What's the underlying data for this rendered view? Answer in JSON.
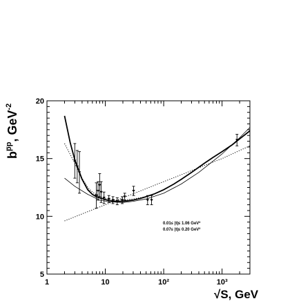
{
  "chart_data": {
    "type": "scatter",
    "xscale": "log",
    "xlim": [
      1,
      3000
    ],
    "ylim": [
      5,
      20
    ],
    "xlabel": "√S, GeV",
    "ylabel": "b^{p̅p}, GeV^{-2}",
    "xticks": [
      {
        "value": 1,
        "label": "1"
      },
      {
        "value": 10,
        "label": "10"
      },
      {
        "value": 100,
        "label": "10²"
      },
      {
        "value": 1000,
        "label": "10³"
      }
    ],
    "yticks": [
      {
        "value": 5,
        "label": "5"
      },
      {
        "value": 10,
        "label": "10"
      },
      {
        "value": 15,
        "label": "15"
      },
      {
        "value": 20,
        "label": "20"
      }
    ],
    "annotations": [
      "0.01≤ |t|≤ 1.06 GeV²",
      "0.07≤ |t|≤ 0.20 GeV²"
    ],
    "points": [
      {
        "x": 3.0,
        "y": 14.8,
        "yerr": 1.5
      },
      {
        "x": 3.3,
        "y": 14.3,
        "yerr": 1.4
      },
      {
        "x": 3.6,
        "y": 13.8,
        "yerr": 1.8
      },
      {
        "x": 7.0,
        "y": 11.8,
        "yerr": 1.1
      },
      {
        "x": 7.5,
        "y": 12.2,
        "yerr": 0.8
      },
      {
        "x": 8.0,
        "y": 12.7,
        "yerr": 1.0
      },
      {
        "x": 8.5,
        "y": 12.1,
        "yerr": 0.9
      },
      {
        "x": 9.5,
        "y": 11.6,
        "yerr": 0.5
      },
      {
        "x": 11.5,
        "y": 11.5,
        "yerr": 0.3
      },
      {
        "x": 13.5,
        "y": 11.4,
        "yerr": 0.3
      },
      {
        "x": 16.0,
        "y": 11.3,
        "yerr": 0.3
      },
      {
        "x": 19.5,
        "y": 11.4,
        "yerr": 0.3
      },
      {
        "x": 21.5,
        "y": 11.7,
        "yerr": 0.3
      },
      {
        "x": 30.5,
        "y": 12.2,
        "yerr": 0.4
      },
      {
        "x": 53.0,
        "y": 11.4,
        "yerr": 0.4
      },
      {
        "x": 62.0,
        "y": 11.4,
        "yerr": 0.4
      },
      {
        "x": 1800.0,
        "y": 16.6,
        "yerr": 0.5
      }
    ],
    "series": [
      {
        "style": "thick-solid",
        "x": [
          2.0,
          2.5,
          3,
          4,
          5,
          6,
          7,
          8,
          10,
          12,
          15,
          20,
          25,
          30,
          40,
          50,
          70,
          100,
          150,
          200,
          300,
          500,
          700,
          1000,
          1500,
          2000,
          3000
        ],
        "y": [
          18.7,
          16.4,
          14.9,
          13.2,
          12.3,
          11.9,
          11.7,
          11.6,
          11.45,
          11.35,
          11.3,
          11.3,
          11.35,
          11.4,
          11.55,
          11.7,
          11.95,
          12.3,
          12.8,
          13.2,
          13.8,
          14.6,
          15.1,
          15.6,
          16.2,
          16.7,
          17.4
        ]
      },
      {
        "style": "thin-solid",
        "x": [
          2.0,
          3,
          5,
          8,
          12,
          20,
          30,
          50,
          100,
          200,
          400,
          1000,
          2000,
          3000
        ],
        "y": [
          13.3,
          12.6,
          11.9,
          11.4,
          11.25,
          11.2,
          11.3,
          11.5,
          12.0,
          12.8,
          13.8,
          15.4,
          16.8,
          17.7
        ]
      },
      {
        "style": "dotted",
        "x": [
          2.0,
          3,
          4,
          5,
          6,
          8,
          10,
          15,
          20,
          30,
          50
        ],
        "y": [
          16.3,
          14.6,
          13.3,
          12.5,
          12.1,
          11.7,
          11.55,
          11.4,
          11.4,
          11.5,
          11.7
        ]
      },
      {
        "style": "dotted",
        "x": [
          2.0,
          5,
          10,
          20,
          50,
          100,
          200,
          500,
          1000,
          2000,
          3000
        ],
        "y": [
          9.6,
          10.4,
          11.0,
          11.6,
          12.4,
          13.0,
          13.6,
          14.4,
          15.0,
          15.7,
          16.1
        ]
      }
    ]
  }
}
